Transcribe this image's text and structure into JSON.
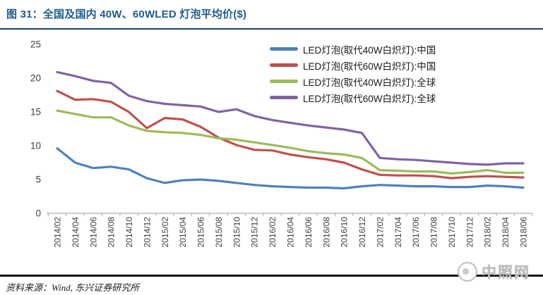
{
  "header": {
    "title": "图 31：全国及国内 40W、60WLED 灯泡平均价($)"
  },
  "footer": {
    "source": "资料来源：Wind, 东兴证券研究所"
  },
  "watermark": {
    "text": "中照网"
  },
  "chart_data": {
    "type": "line",
    "title": "全国及国内 40W、60WLED 灯泡平均价($)",
    "xlabel": "",
    "ylabel": "",
    "ylim": [
      0,
      25
    ],
    "y_ticks": [
      0,
      5,
      10,
      15,
      20,
      25
    ],
    "grid": false,
    "legend_position": "top-right-inside",
    "categories": [
      "2014/02",
      "2014/04",
      "2014/06",
      "2014/08",
      "2014/10",
      "2014/12",
      "2015/02",
      "2015/04",
      "2015/06",
      "2015/08",
      "2015/10",
      "2015/12",
      "2016/02",
      "2016/04",
      "2016/06",
      "2016/08",
      "2016/10",
      "2016/12",
      "2017/02",
      "2017/04",
      "2017/06",
      "2017/08",
      "2017/10",
      "2017/12",
      "2018/02",
      "2018/04",
      "2018/06"
    ],
    "series": [
      {
        "name": "LED灯泡(取代40W白炽灯):中国",
        "color": "#4F81BD",
        "values": [
          9.6,
          7.5,
          6.7,
          6.9,
          6.5,
          5.2,
          4.5,
          4.9,
          5.0,
          4.8,
          4.5,
          4.2,
          4.0,
          3.9,
          3.8,
          3.8,
          3.7,
          4.0,
          4.2,
          4.1,
          4.0,
          4.0,
          3.9,
          3.9,
          4.1,
          4.0,
          3.8
        ]
      },
      {
        "name": "LED灯泡(取代60W白炽灯):中国",
        "color": "#C0504D",
        "values": [
          18.1,
          16.8,
          16.9,
          16.5,
          15.0,
          12.6,
          14.1,
          13.9,
          12.8,
          11.2,
          10.1,
          9.4,
          9.3,
          8.7,
          8.3,
          8.0,
          7.5,
          6.5,
          5.7,
          5.6,
          5.6,
          5.5,
          5.2,
          5.4,
          5.5,
          5.4,
          5.3
        ]
      },
      {
        "name": "LED灯泡(取代40W白炽灯):全球",
        "color": "#9BBB59",
        "values": [
          15.2,
          14.7,
          14.2,
          14.2,
          13.0,
          12.2,
          12.0,
          11.9,
          11.6,
          11.1,
          10.9,
          10.5,
          10.1,
          9.7,
          9.2,
          8.9,
          8.7,
          8.2,
          6.4,
          6.3,
          6.2,
          6.2,
          5.9,
          6.1,
          6.4,
          6.0,
          6.0
        ]
      },
      {
        "name": "LED灯泡(取代60W白炽灯):全球",
        "color": "#8064A2",
        "values": [
          20.9,
          20.3,
          19.6,
          19.3,
          17.4,
          16.6,
          16.2,
          16.0,
          15.8,
          15.0,
          15.4,
          14.4,
          13.8,
          13.4,
          13.0,
          12.7,
          12.4,
          11.9,
          8.2,
          8.0,
          7.9,
          7.7,
          7.5,
          7.3,
          7.2,
          7.4,
          7.4
        ]
      }
    ]
  }
}
